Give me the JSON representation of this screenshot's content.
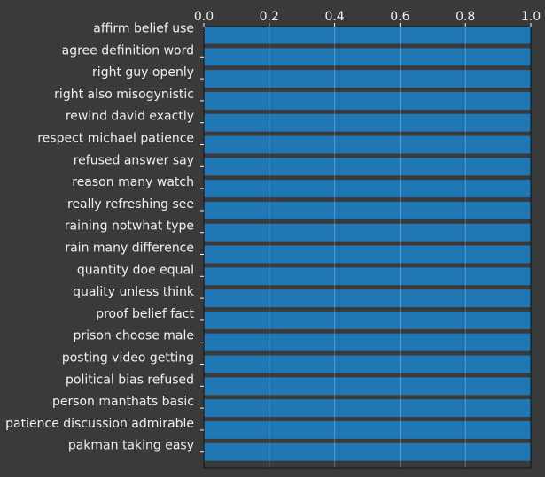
{
  "chart_data": {
    "type": "bar",
    "orientation": "horizontal",
    "title": "",
    "xlabel": "",
    "ylabel": "",
    "xlim": [
      0,
      1.0
    ],
    "x_ticks": [
      "0.0",
      "0.2",
      "0.4",
      "0.6",
      "0.8",
      "1.0"
    ],
    "x_tick_values": [
      0,
      0.2,
      0.4,
      0.6,
      0.8,
      1.0
    ],
    "x_axis_position": "top",
    "grid": true,
    "bar_color": "#1f77b4",
    "background_color": "#3a3a3a",
    "categories": [
      "affirm belief use",
      "agree definition word",
      "right guy openly",
      "right also misogynistic",
      "rewind david exactly",
      "respect michael patience",
      "refused answer say",
      "reason many watch",
      "really refreshing see",
      "raining notwhat type",
      "rain many difference",
      "quantity doe equal",
      "quality unless think",
      "proof belief fact",
      "prison choose male",
      "posting video getting",
      "political bias refused",
      "person manthats basic",
      "patience discussion admirable",
      "pakman taking easy"
    ],
    "values": [
      1,
      1,
      1,
      1,
      1,
      1,
      1,
      1,
      1,
      1,
      1,
      1,
      1,
      1,
      1,
      1,
      1,
      1,
      1,
      1
    ]
  }
}
